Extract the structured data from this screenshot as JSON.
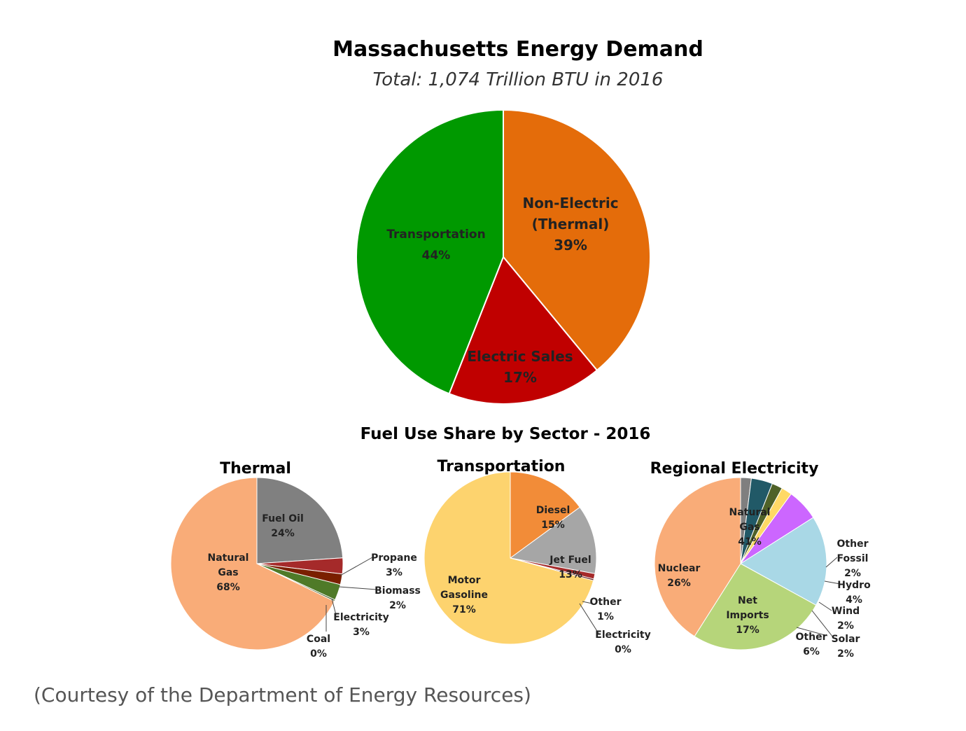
{
  "chart_data": [
    {
      "type": "pie",
      "title": "Massachusetts Energy Demand",
      "subtitle": "Total: 1,074 Trillion BTU  in 2016",
      "slices": [
        {
          "label": "Non-Electric (Thermal)",
          "pct": "39%",
          "value": 39,
          "color": "#E46C0A"
        },
        {
          "label": "Electric Sales",
          "pct": "17%",
          "value": 17,
          "color": "#C00000"
        },
        {
          "label": "Transportation",
          "pct": "44%",
          "value": 44,
          "color": "#009900"
        }
      ]
    },
    {
      "type": "pie",
      "title": "Thermal",
      "slices": [
        {
          "label": "Fuel Oil",
          "pct": "24%",
          "value": 24,
          "color": "#808080"
        },
        {
          "label": "Propane",
          "pct": "3%",
          "value": 3,
          "color": "#A52A2A"
        },
        {
          "label": "Biomass",
          "pct": "2%",
          "value": 2,
          "color": "#7A1F00"
        },
        {
          "label": "Electricity",
          "pct": "3%",
          "value": 3,
          "color": "#4F7A28"
        },
        {
          "label": "Coal",
          "pct": "0%",
          "value": 0.3,
          "color": "#3A5A1C"
        },
        {
          "label": "Natural Gas",
          "pct": "68%",
          "value": 68,
          "color": "#F9AC78"
        }
      ]
    },
    {
      "type": "pie",
      "title": "Transportation",
      "slices": [
        {
          "label": "Diesel",
          "pct": "15%",
          "value": 15,
          "color": "#F28C38"
        },
        {
          "label": "Jet Fuel",
          "pct": "13%",
          "value": 13,
          "color": "#A6A6A6"
        },
        {
          "label": "Other",
          "pct": "1%",
          "value": 1,
          "color": "#A52A2A"
        },
        {
          "label": "Electricity",
          "pct": "0%",
          "value": 0.3,
          "color": "#5C1A1A"
        },
        {
          "label": "Motor Gasoline",
          "pct": "71%",
          "value": 71,
          "color": "#FDD36E"
        }
      ]
    },
    {
      "type": "pie",
      "title": "Regional Electricity",
      "slices": [
        {
          "label": "Other Fossil",
          "pct": "2%",
          "value": 2,
          "color": "#7F7F7F"
        },
        {
          "label": "Hydro",
          "pct": "4%",
          "value": 4,
          "color": "#215967"
        },
        {
          "label": "Wind",
          "pct": "2%",
          "value": 2,
          "color": "#4F6228"
        },
        {
          "label": "Solar",
          "pct": "2%",
          "value": 2,
          "color": "#FFD966"
        },
        {
          "label": "Other",
          "pct": "6%",
          "value": 6,
          "color": "#CC66FF"
        },
        {
          "label": "Net Imports",
          "pct": "17%",
          "value": 17,
          "color": "#A9D8E6"
        },
        {
          "label": "Nuclear",
          "pct": "26%",
          "value": 26,
          "color": "#B6D57A"
        },
        {
          "label": "Natural Gas",
          "pct": "41%",
          "value": 41,
          "color": "#F9AC78"
        }
      ]
    }
  ],
  "section_title": "Fuel Use Share by Sector - 2016",
  "caption": "(Courtesy of the Department of Energy Resources)"
}
